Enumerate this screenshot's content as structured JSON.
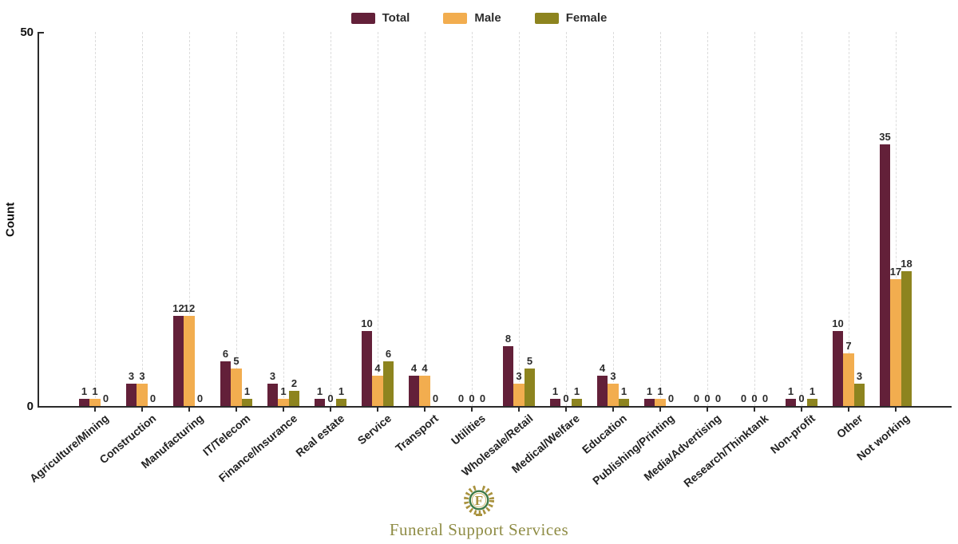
{
  "theme": {
    "background": "#ffffff",
    "axis_color": "#2b2b2b",
    "gridline_color": "#dcdcdc",
    "value_label_color": "#2b2b2b",
    "legend_text_color": "#2e2e2e",
    "logo_green": "#3e7a46",
    "logo_gold": "#a9923e",
    "brand_text_color": "#8f8c45"
  },
  "chart_data": {
    "type": "bar",
    "title": "",
    "xlabel": "",
    "ylabel": "Count",
    "ylim": [
      0,
      50
    ],
    "yticks": [
      0,
      50
    ],
    "grid": "vertical dashed gridline at each category",
    "legend_position": "top-center",
    "value_labels": true,
    "categories": [
      "Agriculture/Mining",
      "Construction",
      "Manufacturing",
      "IT/Telecom",
      "Finance/Insurance",
      "Real estate",
      "Service",
      "Transport",
      "Utilities",
      "Wholesale/Retail",
      "Medical/Welfare",
      "Education",
      "Publishing/Printing",
      "Media/Advertising",
      "Research/Thinktank",
      "Non-profit",
      "Other",
      "Not working"
    ],
    "series": [
      {
        "name": "Total",
        "color": "#632039",
        "values": [
          1,
          3,
          12,
          6,
          3,
          1,
          10,
          4,
          0,
          8,
          1,
          4,
          1,
          0,
          0,
          1,
          10,
          35
        ]
      },
      {
        "name": "Male",
        "color": "#f2ad4f",
        "values": [
          1,
          3,
          12,
          5,
          1,
          0,
          4,
          4,
          0,
          3,
          0,
          3,
          1,
          0,
          0,
          0,
          7,
          17
        ]
      },
      {
        "name": "Female",
        "color": "#8d841f",
        "values": [
          0,
          0,
          0,
          1,
          2,
          1,
          6,
          0,
          0,
          5,
          1,
          1,
          0,
          0,
          0,
          1,
          3,
          18
        ]
      }
    ]
  },
  "footer": {
    "brand": "Funeral Support Services",
    "monogram": "F"
  }
}
